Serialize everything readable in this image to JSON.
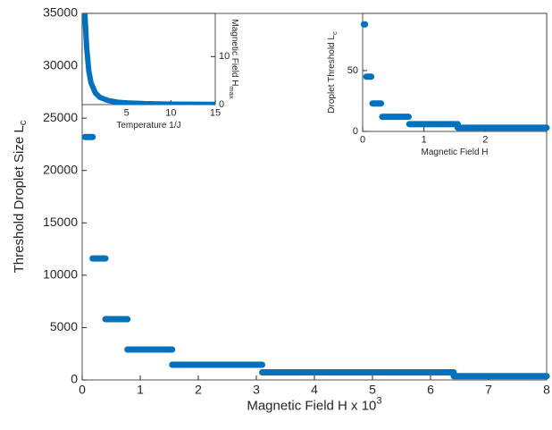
{
  "chart_data": [
    {
      "type": "step",
      "xlabel": "Magnetic Field H x 10",
      "xlabel_sup": "3",
      "ylabel": "Threshold Droplet Size L",
      "ylabel_sub": "c",
      "x_start": [
        0.05,
        0.18,
        0.4,
        0.78,
        1.55,
        3.1,
        6.4
      ],
      "x_end": [
        0.18,
        0.4,
        0.78,
        1.55,
        3.1,
        6.4,
        8
      ],
      "values": [
        23200,
        11600,
        5800,
        2900,
        1450,
        725,
        360
      ],
      "color": "#0072bd",
      "xlim": [
        0,
        8
      ],
      "xticks": [
        0,
        1,
        2,
        3,
        4,
        5,
        6,
        7,
        8
      ],
      "ylim": [
        0,
        35000
      ],
      "yticks": [
        0,
        5000,
        10000,
        15000,
        20000,
        25000,
        30000,
        35000
      ],
      "y_axis_side": "left"
    },
    {
      "type": "line",
      "xlabel": "Temperature 1/J",
      "ylabel": "Magnetic Field H",
      "ylabel_sub": "max",
      "x": [
        0.3,
        0.5,
        0.75,
        1,
        1.5,
        2,
        3,
        4,
        5,
        7,
        10,
        15
      ],
      "values": [
        19,
        12,
        7,
        4.5,
        2.4,
        1.5,
        0.8,
        0.5,
        0.35,
        0.2,
        0.1,
        0.05
      ],
      "color": "#0072bd",
      "xlim": [
        0,
        15
      ],
      "xticks": [
        5,
        10,
        15
      ],
      "ylim": [
        0,
        19
      ],
      "yticks": [
        0,
        10
      ],
      "y_axis_side": "right"
    },
    {
      "type": "step",
      "xlabel": "Magnetic Field H",
      "ylabel": "Droplet Threshold L",
      "ylabel_sub": "c",
      "x_start": [
        0.02,
        0.06,
        0.16,
        0.32,
        0.76,
        1.55
      ],
      "x_end": [
        0.04,
        0.14,
        0.3,
        0.75,
        1.55,
        3
      ],
      "values": [
        88,
        45,
        23,
        12,
        6,
        3
      ],
      "color": "#0072bd",
      "xlim": [
        0,
        3
      ],
      "xticks": [
        0,
        1,
        2
      ],
      "ylim": [
        0,
        97
      ],
      "yticks": [
        0,
        50
      ],
      "y_axis_side": "left"
    }
  ]
}
